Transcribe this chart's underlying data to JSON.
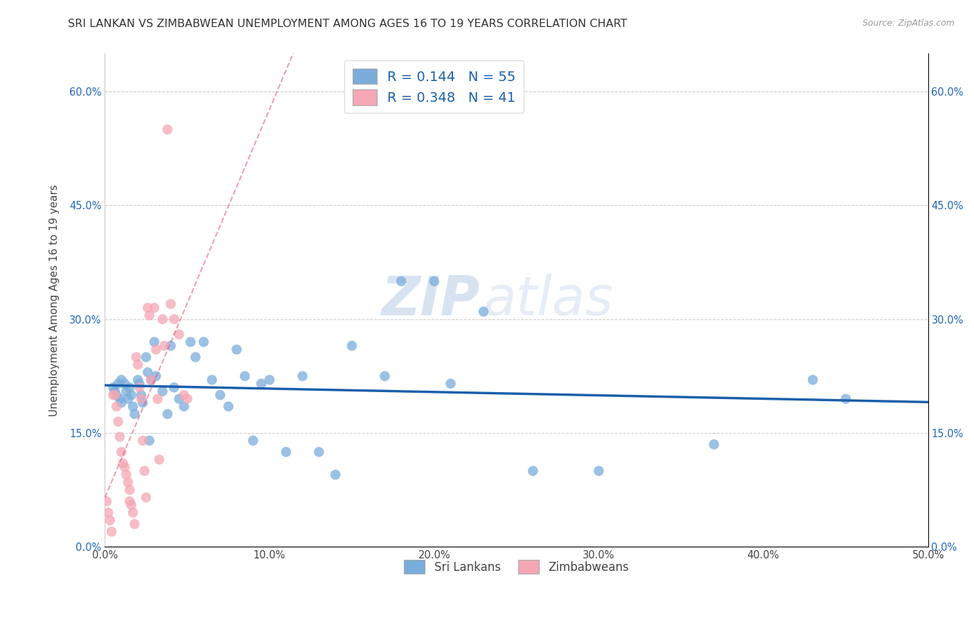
{
  "title": "SRI LANKAN VS ZIMBABWEAN UNEMPLOYMENT AMONG AGES 16 TO 19 YEARS CORRELATION CHART",
  "source": "Source: ZipAtlas.com",
  "ylabel": "Unemployment Among Ages 16 to 19 years",
  "xlim": [
    0.0,
    0.5
  ],
  "ylim": [
    0.0,
    0.65
  ],
  "x_ticks": [
    0.0,
    0.1,
    0.2,
    0.3,
    0.4,
    0.5
  ],
  "x_tick_labels": [
    "0.0%",
    "10.0%",
    "20.0%",
    "30.0%",
    "40.0%",
    "50.0%"
  ],
  "y_ticks": [
    0.0,
    0.15,
    0.3,
    0.45,
    0.6
  ],
  "y_tick_labels": [
    "0.0%",
    "15.0%",
    "30.0%",
    "45.0%",
    "60.0%"
  ],
  "sri_lankans_color": "#7AADDC",
  "zimbabweans_color": "#F4A7B5",
  "sri_lankans_line_color": "#1A5FAB",
  "zimbabweans_line_color": "#E8506A",
  "watermark_text": "ZIP",
  "watermark_text2": "atlas",
  "sri_lankans_x": [
    0.005,
    0.006,
    0.007,
    0.008,
    0.009,
    0.01,
    0.01,
    0.012,
    0.013,
    0.014,
    0.015,
    0.016,
    0.017,
    0.018,
    0.02,
    0.021,
    0.022,
    0.023,
    0.025,
    0.026,
    0.027,
    0.028,
    0.03,
    0.031,
    0.035,
    0.038,
    0.04,
    0.042,
    0.045,
    0.048,
    0.052,
    0.055,
    0.06,
    0.065,
    0.07,
    0.075,
    0.08,
    0.085,
    0.09,
    0.095,
    0.1,
    0.11,
    0.12,
    0.13,
    0.14,
    0.15,
    0.17,
    0.18,
    0.2,
    0.21,
    0.23,
    0.26,
    0.3,
    0.37,
    0.43,
    0.45
  ],
  "sri_lankans_y": [
    0.21,
    0.205,
    0.2,
    0.215,
    0.195,
    0.22,
    0.19,
    0.215,
    0.205,
    0.195,
    0.21,
    0.2,
    0.185,
    0.175,
    0.22,
    0.215,
    0.2,
    0.19,
    0.25,
    0.23,
    0.14,
    0.22,
    0.27,
    0.225,
    0.205,
    0.175,
    0.265,
    0.21,
    0.195,
    0.185,
    0.27,
    0.25,
    0.27,
    0.22,
    0.2,
    0.185,
    0.26,
    0.225,
    0.14,
    0.215,
    0.22,
    0.125,
    0.225,
    0.125,
    0.095,
    0.265,
    0.225,
    0.35,
    0.35,
    0.215,
    0.31,
    0.1,
    0.1,
    0.135,
    0.22,
    0.195
  ],
  "zimbabweans_x": [
    0.001,
    0.002,
    0.003,
    0.004,
    0.005,
    0.006,
    0.007,
    0.008,
    0.009,
    0.01,
    0.011,
    0.012,
    0.013,
    0.014,
    0.015,
    0.015,
    0.016,
    0.017,
    0.018,
    0.019,
    0.02,
    0.021,
    0.022,
    0.023,
    0.024,
    0.025,
    0.026,
    0.027,
    0.028,
    0.03,
    0.031,
    0.032,
    0.033,
    0.035,
    0.036,
    0.038,
    0.04,
    0.042,
    0.045,
    0.048,
    0.05
  ],
  "zimbabweans_y": [
    0.06,
    0.045,
    0.035,
    0.02,
    0.2,
    0.2,
    0.185,
    0.165,
    0.145,
    0.125,
    0.11,
    0.105,
    0.095,
    0.085,
    0.075,
    0.06,
    0.055,
    0.045,
    0.03,
    0.25,
    0.24,
    0.21,
    0.195,
    0.14,
    0.1,
    0.065,
    0.315,
    0.305,
    0.22,
    0.315,
    0.26,
    0.195,
    0.115,
    0.3,
    0.265,
    0.55,
    0.32,
    0.3,
    0.28,
    0.2,
    0.195
  ]
}
